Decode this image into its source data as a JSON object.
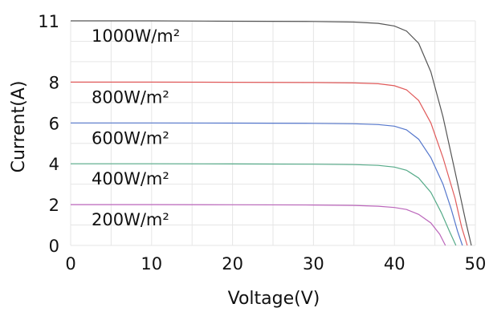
{
  "chart_data": {
    "type": "line",
    "title": "",
    "xlabel": "Voltage(V)",
    "ylabel": "Current(A)",
    "xlim": [
      0,
      50
    ],
    "ylim": [
      0,
      11
    ],
    "xticks": [
      0,
      10,
      20,
      30,
      40,
      50
    ],
    "yticks": [
      0,
      2,
      4,
      6,
      8,
      11
    ],
    "grid": true,
    "legend": "inline labels",
    "series": [
      {
        "name": "1000W/m²",
        "color": "#555555",
        "points": [
          [
            0,
            11.0
          ],
          [
            10,
            11.0
          ],
          [
            20,
            10.98
          ],
          [
            30,
            10.97
          ],
          [
            35,
            10.94
          ],
          [
            38,
            10.88
          ],
          [
            40,
            10.75
          ],
          [
            41.5,
            10.5
          ],
          [
            43,
            9.9
          ],
          [
            44.5,
            8.5
          ],
          [
            46,
            6.3
          ],
          [
            47.5,
            3.6
          ],
          [
            48.8,
            1.2
          ],
          [
            49.5,
            0
          ]
        ]
      },
      {
        "name": "800W/m²",
        "color": "#e05a5a",
        "points": [
          [
            0,
            8.0
          ],
          [
            10,
            8.0
          ],
          [
            20,
            7.99
          ],
          [
            30,
            7.98
          ],
          [
            35,
            7.96
          ],
          [
            38,
            7.92
          ],
          [
            40,
            7.82
          ],
          [
            41.5,
            7.62
          ],
          [
            43,
            7.1
          ],
          [
            44.5,
            6.0
          ],
          [
            46,
            4.3
          ],
          [
            47.5,
            2.3
          ],
          [
            48.3,
            0.9
          ],
          [
            49,
            0
          ]
        ]
      },
      {
        "name": "600W/m²",
        "color": "#5577cc",
        "points": [
          [
            0,
            6.0
          ],
          [
            10,
            6.0
          ],
          [
            20,
            5.99
          ],
          [
            30,
            5.98
          ],
          [
            35,
            5.96
          ],
          [
            38,
            5.92
          ],
          [
            40,
            5.84
          ],
          [
            41.5,
            5.66
          ],
          [
            43,
            5.2
          ],
          [
            44.5,
            4.3
          ],
          [
            46,
            3.0
          ],
          [
            47,
            1.8
          ],
          [
            47.8,
            0.7
          ],
          [
            48.4,
            0
          ]
        ]
      },
      {
        "name": "400W/m²",
        "color": "#55aa88",
        "points": [
          [
            0,
            4.0
          ],
          [
            10,
            4.0
          ],
          [
            20,
            3.99
          ],
          [
            30,
            3.98
          ],
          [
            35,
            3.96
          ],
          [
            38,
            3.92
          ],
          [
            40,
            3.84
          ],
          [
            41.5,
            3.68
          ],
          [
            43,
            3.3
          ],
          [
            44.5,
            2.6
          ],
          [
            45.8,
            1.6
          ],
          [
            46.8,
            0.7
          ],
          [
            47.6,
            0
          ]
        ]
      },
      {
        "name": "200W/m²",
        "color": "#bb66bb",
        "points": [
          [
            0,
            2.0
          ],
          [
            10,
            2.0
          ],
          [
            20,
            1.99
          ],
          [
            30,
            1.98
          ],
          [
            35,
            1.96
          ],
          [
            38,
            1.92
          ],
          [
            40,
            1.86
          ],
          [
            41.5,
            1.76
          ],
          [
            43,
            1.52
          ],
          [
            44.5,
            1.1
          ],
          [
            45.6,
            0.55
          ],
          [
            46.3,
            0
          ]
        ]
      }
    ]
  }
}
